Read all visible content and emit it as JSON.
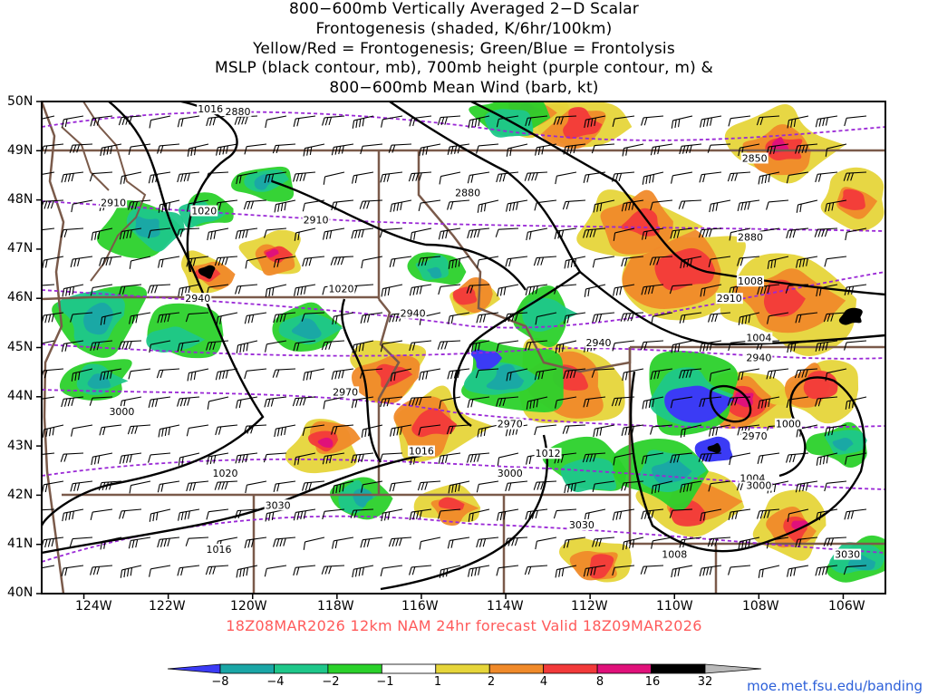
{
  "title_lines": [
    "800−600mb Vertically Averaged 2−D Scalar",
    "Frontogenesis (shaded, K/6hr/100km)",
    "Yellow/Red = Frontogenesis;  Green/Blue = Frontolysis",
    "MSLP (black contour, mb), 700mb height (purple contour, m) &",
    "800−600mb Mean Wind (barb, kt)"
  ],
  "lat_labels": [
    "50N",
    "49N",
    "48N",
    "47N",
    "46N",
    "45N",
    "44N",
    "43N",
    "42N",
    "41N",
    "40N"
  ],
  "lon_labels": [
    "124W",
    "122W",
    "120W",
    "118W",
    "116W",
    "114W",
    "112W",
    "110W",
    "108W",
    "106W"
  ],
  "subtitle": "18Z08MAR2026 12km NAM 24hr forecast Valid 18Z09MAR2026",
  "credit": "moe.met.fsu.edu/banding",
  "colorbar": {
    "labels": [
      "−8",
      "−4",
      "−2",
      "−1",
      "1",
      "2",
      "4",
      "8",
      "16",
      "32"
    ],
    "colors": [
      "#3b3bf5",
      "#1aa6a6",
      "#1fc78a",
      "#2bd12b",
      "#ffffff",
      "#e6d53a",
      "#f08a2a",
      "#f23a3a",
      "#e0117a",
      "#000000",
      "#b9b9b9"
    ]
  },
  "mslp_labels": [
    {
      "text": "1016",
      "lon": -121.0,
      "lat": 49.85
    },
    {
      "text": "1020",
      "lon": -121.15,
      "lat": 47.78
    },
    {
      "text": "1020",
      "lon": -117.9,
      "lat": 46.2
    },
    {
      "text": "1020",
      "lon": -120.65,
      "lat": 42.45
    },
    {
      "text": "1016",
      "lon": -116.0,
      "lat": 42.9
    },
    {
      "text": "1016",
      "lon": -120.8,
      "lat": 40.9
    },
    {
      "text": "1012",
      "lon": -113.0,
      "lat": 42.85
    },
    {
      "text": "1008",
      "lon": -108.2,
      "lat": 46.35
    },
    {
      "text": "1004",
      "lon": -108.0,
      "lat": 45.2
    },
    {
      "text": "1000",
      "lon": -107.3,
      "lat": 43.45
    },
    {
      "text": "1004",
      "lon": -108.15,
      "lat": 42.35
    },
    {
      "text": "1008",
      "lon": -110.0,
      "lat": 40.8
    }
  ],
  "height_labels": [
    {
      "text": "2880",
      "lon": -120.35,
      "lat": 49.8
    },
    {
      "text": "2910",
      "lon": -123.3,
      "lat": 47.95
    },
    {
      "text": "2910",
      "lon": -118.5,
      "lat": 47.6
    },
    {
      "text": "2880",
      "lon": -114.9,
      "lat": 48.15
    },
    {
      "text": "2850",
      "lon": -108.1,
      "lat": 48.85
    },
    {
      "text": "2880",
      "lon": -108.2,
      "lat": 47.25
    },
    {
      "text": "2910",
      "lon": -108.7,
      "lat": 46.0
    },
    {
      "text": "2940",
      "lon": -121.3,
      "lat": 46.0
    },
    {
      "text": "2940",
      "lon": -116.2,
      "lat": 45.7
    },
    {
      "text": "2940",
      "lon": -111.8,
      "lat": 45.1
    },
    {
      "text": "2940",
      "lon": -108.0,
      "lat": 44.8
    },
    {
      "text": "2970",
      "lon": -117.8,
      "lat": 44.1
    },
    {
      "text": "2970",
      "lon": -113.9,
      "lat": 43.45
    },
    {
      "text": "2970",
      "lon": -108.1,
      "lat": 43.2
    },
    {
      "text": "3000",
      "lon": -123.1,
      "lat": 43.7
    },
    {
      "text": "3000",
      "lon": -113.9,
      "lat": 42.45
    },
    {
      "text": "3000",
      "lon": -108.0,
      "lat": 42.2
    },
    {
      "text": "3030",
      "lon": -119.4,
      "lat": 41.8
    },
    {
      "text": "3030",
      "lon": -112.2,
      "lat": 41.4
    },
    {
      "text": "3030",
      "lon": -105.9,
      "lat": 40.8
    }
  ]
}
